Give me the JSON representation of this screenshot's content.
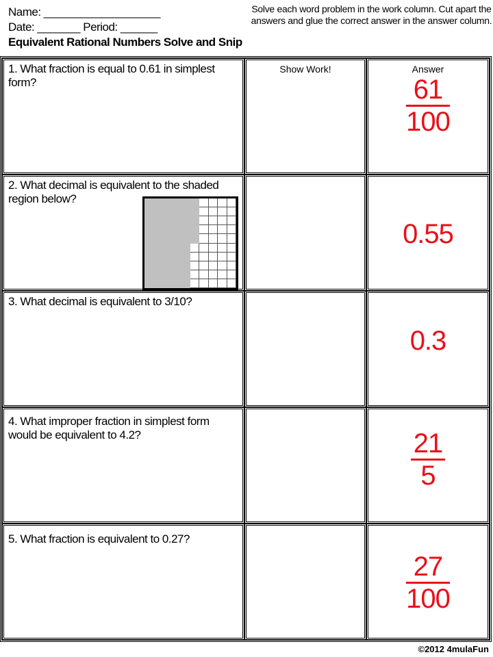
{
  "header": {
    "name_label": "Name: ___________________",
    "date_label": "Date: _______ Period: ______",
    "title": "Equivalent Rational Numbers Solve and Snip",
    "instructions": "Solve each word problem in the work column. Cut apart the answers and glue the correct answer in the answer column."
  },
  "columns": {
    "work": "Show Work!",
    "answer": "Answer"
  },
  "problems": [
    {
      "question": "1. What fraction is equal to 0.61 in simplest form?",
      "answer_num": "61",
      "answer_den": "100"
    },
    {
      "question": "2. What decimal is equivalent to the shaded region below?",
      "answer": "0.55",
      "grid_shaded": 55,
      "grid_total": 100
    },
    {
      "question": "3. What decimal is equivalent to 3/10?",
      "answer": "0.3"
    },
    {
      "question": "4. What improper fraction in simplest form would be equivalent to 4.2?",
      "answer_num": "21",
      "answer_den": "5"
    },
    {
      "question": "5. What fraction is equivalent to 0.27?",
      "answer_num": "27",
      "answer_den": "100"
    }
  ],
  "colors": {
    "answer": "#e8101a",
    "shaded": "#c0c0c0"
  },
  "footer": "©2012 4mulaFun"
}
